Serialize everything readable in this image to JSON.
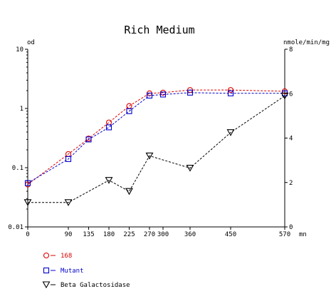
{
  "chart_data": {
    "type": "line",
    "title": "Rich Medium",
    "y_left_label": "od",
    "y_right_label": "nmole/min/mg",
    "x_unit_label": "mn",
    "x_ticks": [
      "0",
      "90",
      "135",
      "180",
      "225",
      "270",
      "300",
      "360",
      "450",
      "570"
    ],
    "x_tick_values": [
      0,
      90,
      135,
      180,
      225,
      270,
      300,
      360,
      450,
      570
    ],
    "y_left_scale": "log",
    "y_left_ticks": [
      "0.01",
      "0.1",
      "1",
      "10"
    ],
    "y_left_tick_values": [
      0.01,
      0.1,
      1,
      10
    ],
    "y_left_lim": [
      0.01,
      10
    ],
    "y_right_ticks": [
      "0",
      "2",
      "4",
      "6",
      "8"
    ],
    "y_right_tick_values": [
      0,
      2,
      4,
      6,
      8
    ],
    "y_right_lim": [
      0,
      8
    ],
    "xlim": [
      0,
      570
    ],
    "grid": false,
    "legend_placement": "bottom-left",
    "series": [
      {
        "name": "168",
        "axis": "left",
        "color": "#dd0000",
        "marker": "circle",
        "x": [
          0,
          90,
          135,
          180,
          225,
          270,
          300,
          360,
          450,
          570
        ],
        "y": [
          0.052,
          0.17,
          0.31,
          0.58,
          1.1,
          1.8,
          1.85,
          2.05,
          2.05,
          1.95
        ]
      },
      {
        "name": "Mutant",
        "axis": "left",
        "color": "#0000cc",
        "marker": "square",
        "x": [
          0,
          90,
          135,
          180,
          225,
          270,
          300,
          360,
          450,
          570
        ],
        "y": [
          0.055,
          0.14,
          0.3,
          0.48,
          0.9,
          1.65,
          1.72,
          1.85,
          1.8,
          1.8
        ]
      },
      {
        "name": "Beta Galactosidase",
        "axis": "right",
        "color": "#000000",
        "marker": "triangle-down",
        "x": [
          0,
          90,
          180,
          225,
          270,
          360,
          450,
          570
        ],
        "y": [
          1.1,
          1.1,
          2.1,
          1.6,
          3.2,
          2.65,
          4.25,
          5.9
        ]
      }
    ]
  }
}
